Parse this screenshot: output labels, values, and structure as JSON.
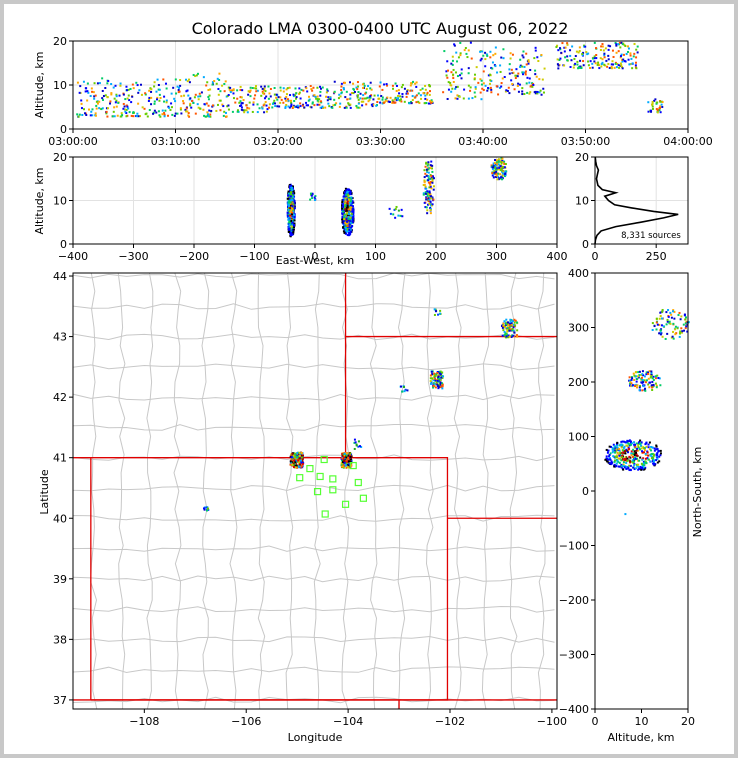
{
  "chart_data": [
    {
      "type": "scatter",
      "panel": "time-altitude",
      "title": "Colorado LMA 0300-0400 UTC August 06, 2022",
      "xlabel": "",
      "ylabel": "Altitude, km",
      "xlim": [
        "03:00:00",
        "04:00:00"
      ],
      "ylim": [
        0,
        20
      ],
      "xticks": [
        "03:00:00",
        "03:10:00",
        "03:20:00",
        "03:30:00",
        "03:40:00",
        "03:50:00",
        "04:00:00"
      ],
      "yticks": [
        "0",
        "10",
        "20"
      ],
      "grid": true,
      "clusters": [
        {
          "t_min": [
            0.3,
            3.5
          ],
          "alt": [
            3,
            12
          ]
        },
        {
          "t_min": [
            3.5,
            7.5
          ],
          "alt": [
            3,
            11
          ]
        },
        {
          "t_min": [
            7.5,
            11.5
          ],
          "alt": [
            3,
            12
          ]
        },
        {
          "t_min": [
            11.5,
            15
          ],
          "alt": [
            3,
            13
          ]
        },
        {
          "t_min": [
            15,
            19
          ],
          "alt": [
            4,
            10
          ]
        },
        {
          "t_min": [
            19,
            25
          ],
          "alt": [
            5,
            10
          ]
        },
        {
          "t_min": [
            25,
            30
          ],
          "alt": [
            5,
            11
          ]
        },
        {
          "t_min": [
            30,
            35
          ],
          "alt": [
            6,
            11
          ]
        },
        {
          "t_min": [
            36,
            40
          ],
          "alt": [
            7,
            20
          ]
        },
        {
          "t_min": [
            40,
            46
          ],
          "alt": [
            8,
            19
          ]
        },
        {
          "t_min": [
            47,
            55
          ],
          "alt": [
            14,
            20
          ]
        },
        {
          "t_min": [
            56,
            57.5
          ],
          "alt": [
            4,
            7
          ]
        }
      ]
    },
    {
      "type": "scatter",
      "panel": "east-west-altitude",
      "xlabel": "East-West, km",
      "ylabel": "Altitude, km",
      "xlim": [
        -400,
        400
      ],
      "ylim": [
        0,
        20
      ],
      "xticks": [
        "−400",
        "−300",
        "−200",
        "−100",
        "0",
        "100",
        "200",
        "300",
        "400"
      ],
      "yticks": [
        "0",
        "10",
        "20"
      ],
      "grid": true,
      "clusters": [
        {
          "x": [
            -47,
            -35
          ],
          "alt": [
            2,
            14
          ],
          "density": "high"
        },
        {
          "x": [
            43,
            62
          ],
          "alt": [
            2,
            13
          ],
          "density": "high"
        },
        {
          "x": [
            -15,
            0
          ],
          "alt": [
            10,
            12
          ],
          "density": "low"
        },
        {
          "x": [
            120,
            145
          ],
          "alt": [
            6,
            9
          ],
          "density": "low"
        },
        {
          "x": [
            178,
            195
          ],
          "alt": [
            7,
            20
          ],
          "density": "medium"
        },
        {
          "x": [
            290,
            315
          ],
          "alt": [
            15,
            20
          ],
          "density": "medium"
        }
      ]
    },
    {
      "type": "line",
      "panel": "altitude-histogram",
      "xlim": [
        0,
        380
      ],
      "ylim": [
        0,
        20
      ],
      "xticks": [
        "0",
        "250"
      ],
      "yticks": [
        "0",
        "10",
        "20"
      ],
      "annotation": "8,331 sources",
      "profile": [
        {
          "alt": 0,
          "count": 0
        },
        {
          "alt": 1,
          "count": 2
        },
        {
          "alt": 2,
          "count": 8
        },
        {
          "alt": 3,
          "count": 25
        },
        {
          "alt": 4,
          "count": 85
        },
        {
          "alt": 5,
          "count": 185
        },
        {
          "alt": 6,
          "count": 280
        },
        {
          "alt": 6.8,
          "count": 340
        },
        {
          "alt": 7.5,
          "count": 240
        },
        {
          "alt": 8.3,
          "count": 150
        },
        {
          "alt": 9,
          "count": 80
        },
        {
          "alt": 10,
          "count": 55
        },
        {
          "alt": 11,
          "count": 40
        },
        {
          "alt": 11.8,
          "count": 85
        },
        {
          "alt": 12.5,
          "count": 30
        },
        {
          "alt": 13.5,
          "count": 12
        },
        {
          "alt": 15,
          "count": 6
        },
        {
          "alt": 16,
          "count": 10
        },
        {
          "alt": 17,
          "count": 14
        },
        {
          "alt": 18,
          "count": 6
        },
        {
          "alt": 19,
          "count": 3
        },
        {
          "alt": 20,
          "count": 1
        }
      ]
    },
    {
      "type": "scatter",
      "panel": "plan-view-map",
      "xlabel": "Longitude",
      "ylabel": "Latitude",
      "xlim": [
        -109.4,
        -99.9
      ],
      "ylim": [
        36.85,
        44.05
      ],
      "xticks": [
        "−108",
        "−106",
        "−104",
        "−102",
        "−100"
      ],
      "yticks": [
        "37",
        "38",
        "39",
        "40",
        "41",
        "42",
        "43",
        "44"
      ],
      "clusters": [
        {
          "lon": [
            -105.15,
            -104.9
          ],
          "lat": [
            40.85,
            41.1
          ],
          "density": "high"
        },
        {
          "lon": [
            -104.15,
            -103.95
          ],
          "lat": [
            40.85,
            41.1
          ],
          "density": "high"
        },
        {
          "lon": [
            -103.9,
            -103.75
          ],
          "lat": [
            41.15,
            41.32
          ],
          "density": "low"
        },
        {
          "lon": [
            -102.4,
            -102.15
          ],
          "lat": [
            42.15,
            42.45
          ],
          "density": "medium"
        },
        {
          "lon": [
            -101.0,
            -100.7
          ],
          "lat": [
            43.0,
            43.3
          ],
          "density": "medium"
        },
        {
          "lon": [
            -102.35,
            -102.2
          ],
          "lat": [
            43.35,
            43.5
          ],
          "density": "low"
        },
        {
          "lon": [
            -103.0,
            -102.85
          ],
          "lat": [
            42.1,
            42.2
          ],
          "density": "low"
        },
        {
          "lon": [
            -106.85,
            -106.75
          ],
          "lat": [
            40.12,
            40.2
          ],
          "density": "low"
        }
      ],
      "stations": [
        {
          "lon": -104.47,
          "lat": 40.97
        },
        {
          "lon": -104.75,
          "lat": 40.82
        },
        {
          "lon": -104.95,
          "lat": 40.67
        },
        {
          "lon": -104.55,
          "lat": 40.69
        },
        {
          "lon": -104.3,
          "lat": 40.65
        },
        {
          "lon": -103.9,
          "lat": 40.87
        },
        {
          "lon": -104.6,
          "lat": 40.44
        },
        {
          "lon": -104.3,
          "lat": 40.47
        },
        {
          "lon": -103.8,
          "lat": 40.59
        },
        {
          "lon": -103.7,
          "lat": 40.33
        },
        {
          "lon": -104.05,
          "lat": 40.23
        },
        {
          "lon": -104.45,
          "lat": 40.07
        }
      ]
    },
    {
      "type": "scatter",
      "panel": "altitude-north-south",
      "xlabel": "Altitude, km",
      "ylabel": "North-South, km",
      "xlim": [
        0,
        20
      ],
      "ylim": [
        -400,
        400
      ],
      "xticks": [
        "0",
        "10",
        "20"
      ],
      "yticks": [
        "−400",
        "−300",
        "−200",
        "−100",
        "0",
        "100",
        "200",
        "300",
        "400"
      ],
      "clusters": [
        {
          "alt": [
            2,
            14
          ],
          "ns": [
            40,
            95
          ],
          "density": "high"
        },
        {
          "alt": [
            7,
            14
          ],
          "ns": [
            185,
            222
          ],
          "density": "medium"
        },
        {
          "alt": [
            12,
            20
          ],
          "ns": [
            280,
            335
          ],
          "density": "medium"
        },
        {
          "alt": [
            6,
            6.5
          ],
          "ns": [
            -45,
            -40
          ],
          "density": "low"
        }
      ]
    }
  ]
}
